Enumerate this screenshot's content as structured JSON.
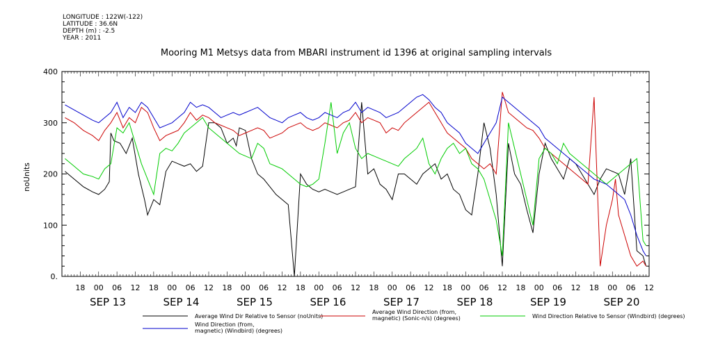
{
  "meta": {
    "longitude": "LONGITUDE : 122W(-122)",
    "latitude": "LATITUDE : 36.6N",
    "depth": "DEPTH (m) : -2.5",
    "year": "YEAR : 2011"
  },
  "chart_data": {
    "type": "line",
    "title": "Mooring M1 Metsys data from MBARI instrument id 1396 at original sampling intervals",
    "xlabel": "",
    "ylabel": "noUnits",
    "ylim": [
      0,
      400
    ],
    "yticks": [
      0,
      100,
      200,
      300,
      400
    ],
    "xlim_hours": [
      -12,
      180
    ],
    "hour_ticks": [
      "18",
      "00",
      "06",
      "12",
      "18",
      "00",
      "06",
      "12",
      "18",
      "00",
      "06",
      "12",
      "18",
      "00",
      "06",
      "12",
      "18",
      "00",
      "06",
      "12",
      "18",
      "00",
      "06",
      "12",
      "18",
      "00",
      "06",
      "12",
      "18",
      "00",
      "06",
      "12"
    ],
    "day_labels": [
      "SEP 13",
      "SEP 14",
      "SEP 15",
      "SEP 16",
      "SEP 17",
      "SEP 18",
      "SEP 19",
      "SEP 20"
    ],
    "grid": false,
    "legend_position": "bottom",
    "series": [
      {
        "name": "Average Wind Dir Relative to Sensor (noUnits)",
        "color": "#000000",
        "x": [
          -11,
          -8,
          -5,
          -2,
          0,
          2,
          3.5,
          4,
          5,
          7,
          9,
          11,
          13,
          15,
          16,
          18,
          20,
          22,
          24,
          26,
          28,
          30,
          32,
          34,
          36,
          38,
          40,
          42,
          44,
          45,
          46,
          48,
          50,
          52,
          54,
          56,
          58,
          60,
          62,
          64,
          66,
          68,
          70,
          72,
          74,
          76,
          78,
          80,
          82,
          84,
          86,
          88,
          90,
          92,
          94,
          96,
          98,
          100,
          102,
          104,
          106,
          108,
          110,
          112,
          114,
          116,
          118,
          120,
          122,
          124,
          126,
          128,
          130,
          132,
          134,
          136,
          138,
          140,
          142,
          144,
          146,
          148,
          150,
          152,
          154,
          156,
          158,
          160,
          162,
          164,
          166,
          168,
          170,
          172,
          174,
          176,
          178,
          179
        ],
        "y": [
          205,
          190,
          175,
          165,
          160,
          170,
          185,
          280,
          265,
          260,
          240,
          270,
          200,
          150,
          120,
          150,
          140,
          205,
          225,
          220,
          215,
          220,
          205,
          215,
          300,
          300,
          290,
          260,
          270,
          255,
          290,
          285,
          230,
          200,
          190,
          175,
          160,
          150,
          140,
          0,
          200,
          180,
          170,
          165,
          170,
          165,
          160,
          165,
          170,
          175,
          340,
          200,
          210,
          180,
          170,
          150,
          200,
          200,
          190,
          180,
          200,
          210,
          220,
          190,
          200,
          170,
          160,
          130,
          120,
          200,
          300,
          250,
          160,
          20,
          260,
          200,
          180,
          130,
          85,
          200,
          260,
          230,
          210,
          190,
          230,
          220,
          200,
          180,
          160,
          190,
          210,
          205,
          200,
          160,
          230,
          50,
          40,
          20
        ]
      },
      {
        "name": "Average Wind Direction (from, magnetic) (Sonic-n/s) (degrees)",
        "color": "#cc0000",
        "x": [
          -11,
          -8,
          -5,
          -2,
          0,
          2,
          4,
          6,
          8,
          10,
          12,
          14,
          16,
          18,
          20,
          22,
          24,
          26,
          28,
          30,
          32,
          34,
          36,
          38,
          40,
          42,
          44,
          46,
          48,
          50,
          52,
          54,
          56,
          58,
          60,
          62,
          64,
          66,
          68,
          70,
          72,
          74,
          76,
          78,
          80,
          82,
          84,
          86,
          88,
          90,
          92,
          94,
          96,
          98,
          100,
          102,
          104,
          106,
          108,
          110,
          112,
          114,
          116,
          118,
          120,
          122,
          124,
          126,
          128,
          130,
          132,
          134,
          136,
          138,
          140,
          142,
          144,
          146,
          148,
          150,
          152,
          154,
          156,
          158,
          160,
          162,
          164,
          166,
          168,
          169,
          170,
          172,
          174,
          176,
          178,
          179
        ],
        "y": [
          310,
          300,
          285,
          275,
          265,
          285,
          300,
          320,
          290,
          310,
          300,
          330,
          320,
          290,
          265,
          275,
          280,
          285,
          300,
          320,
          305,
          315,
          310,
          300,
          295,
          290,
          285,
          275,
          280,
          285,
          290,
          285,
          270,
          275,
          280,
          290,
          295,
          300,
          290,
          285,
          290,
          300,
          295,
          290,
          300,
          305,
          320,
          300,
          310,
          305,
          300,
          280,
          290,
          285,
          300,
          310,
          320,
          330,
          340,
          320,
          300,
          280,
          270,
          260,
          250,
          230,
          220,
          210,
          220,
          200,
          360,
          320,
          310,
          300,
          290,
          285,
          270,
          250,
          240,
          230,
          220,
          210,
          200,
          190,
          180,
          350,
          20,
          100,
          150,
          190,
          120,
          80,
          40,
          20,
          30,
          20
        ]
      },
      {
        "name": "Wind Direction Relative to Sensor (Windbird) (degrees)",
        "color": "#00cc00",
        "x": [
          -11,
          -8,
          -5,
          -2,
          0,
          2,
          4,
          6,
          8,
          10,
          12,
          14,
          16,
          18,
          20,
          22,
          24,
          26,
          28,
          30,
          32,
          34,
          36,
          38,
          40,
          42,
          44,
          46,
          48,
          50,
          52,
          54,
          56,
          58,
          60,
          62,
          64,
          66,
          68,
          70,
          72,
          74,
          76,
          78,
          80,
          82,
          84,
          86,
          88,
          90,
          92,
          94,
          96,
          98,
          100,
          102,
          104,
          106,
          108,
          110,
          112,
          114,
          116,
          118,
          120,
          122,
          124,
          126,
          128,
          130,
          132,
          134,
          136,
          138,
          140,
          142,
          144,
          146,
          148,
          150,
          152,
          154,
          156,
          158,
          160,
          162,
          164,
          166,
          168,
          170,
          172,
          174,
          176,
          178,
          179
        ],
        "y": [
          230,
          215,
          200,
          195,
          190,
          210,
          220,
          290,
          280,
          300,
          260,
          220,
          190,
          160,
          240,
          250,
          245,
          260,
          280,
          290,
          300,
          310,
          290,
          280,
          270,
          260,
          250,
          240,
          235,
          230,
          260,
          250,
          220,
          215,
          210,
          200,
          190,
          180,
          175,
          180,
          190,
          260,
          340,
          240,
          280,
          300,
          250,
          230,
          240,
          235,
          230,
          225,
          220,
          215,
          230,
          240,
          250,
          270,
          220,
          200,
          230,
          250,
          260,
          240,
          250,
          220,
          210,
          190,
          150,
          110,
          40,
          300,
          250,
          200,
          150,
          100,
          230,
          250,
          240,
          220,
          260,
          240,
          230,
          220,
          210,
          200,
          190,
          180,
          190,
          200,
          210,
          220,
          230,
          70,
          60
        ]
      },
      {
        "name": "Wind Direction (from, magnetic) (Windbird) (degrees)",
        "color": "#0000cc",
        "x": [
          -11,
          -8,
          -5,
          -2,
          0,
          2,
          4,
          6,
          8,
          10,
          12,
          14,
          16,
          18,
          20,
          22,
          24,
          26,
          28,
          30,
          32,
          34,
          36,
          38,
          40,
          42,
          44,
          46,
          48,
          50,
          52,
          54,
          56,
          58,
          60,
          62,
          64,
          66,
          68,
          70,
          72,
          74,
          76,
          78,
          80,
          82,
          84,
          86,
          88,
          90,
          92,
          94,
          96,
          98,
          100,
          102,
          104,
          106,
          108,
          110,
          112,
          114,
          116,
          118,
          120,
          122,
          124,
          126,
          128,
          130,
          132,
          134,
          136,
          138,
          140,
          142,
          144,
          146,
          148,
          150,
          152,
          154,
          156,
          158,
          160,
          162,
          164,
          166,
          168,
          170,
          172,
          174,
          176,
          178,
          179
        ],
        "y": [
          335,
          325,
          315,
          305,
          300,
          310,
          320,
          340,
          310,
          330,
          320,
          340,
          330,
          310,
          290,
          295,
          300,
          310,
          320,
          340,
          330,
          335,
          330,
          320,
          310,
          315,
          320,
          315,
          320,
          325,
          330,
          320,
          310,
          305,
          300,
          310,
          315,
          320,
          310,
          305,
          310,
          320,
          315,
          310,
          320,
          325,
          340,
          320,
          330,
          325,
          320,
          310,
          315,
          320,
          330,
          340,
          350,
          355,
          345,
          330,
          320,
          300,
          290,
          280,
          260,
          250,
          240,
          260,
          280,
          300,
          350,
          340,
          330,
          320,
          310,
          300,
          290,
          270,
          260,
          250,
          240,
          230,
          220,
          210,
          200,
          190,
          185,
          180,
          170,
          160,
          150,
          120,
          80,
          50,
          40
        ]
      }
    ]
  },
  "legend": [
    {
      "label_lines": [
        "Average Wind Dir Relative to Sensor (noUnits)"
      ],
      "color": "#000000"
    },
    {
      "label_lines": [
        "Average Wind Direction (from,",
        "magnetic) (Sonic-n/s) (degrees)"
      ],
      "color": "#cc0000"
    },
    {
      "label_lines": [
        "Wind Direction Relative to Sensor (Windbird) (degrees)"
      ],
      "color": "#00cc00"
    },
    {
      "label_lines": [
        "Wind Direction (from,",
        "magnetic) (Windbird) (degrees)"
      ],
      "color": "#0000cc"
    }
  ]
}
